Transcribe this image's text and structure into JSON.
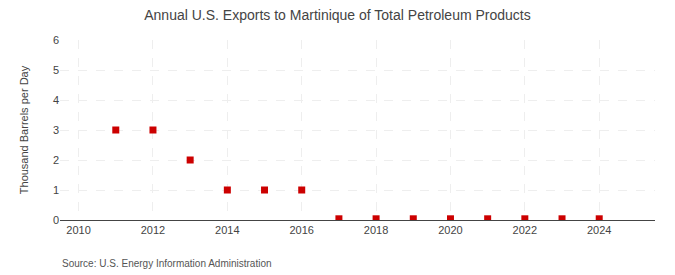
{
  "chart_data": {
    "type": "scatter",
    "title": "Annual U.S. Exports to Martinique of Total Petroleum Products",
    "y_label": "Thousand Barrels per Day",
    "annotations": [
      "Source: U.S. Energy Information Administration"
    ],
    "x": [
      2011,
      2012,
      2013,
      2014,
      2015,
      2016,
      2017,
      2018,
      2019,
      2020,
      2021,
      2022,
      2023,
      2024
    ],
    "values": [
      3,
      3,
      2,
      1,
      1,
      1,
      0.04,
      0.04,
      0.04,
      0.04,
      0.04,
      0.04,
      0.04,
      0.04
    ],
    "color": "#cc0000",
    "marker": "square",
    "xlim": [
      2009.5,
      2025.5
    ],
    "xticks": [
      2010,
      2012,
      2014,
      2016,
      2018,
      2020,
      2022,
      2024
    ],
    "ylim": [
      0,
      6
    ],
    "yticks": [
      0,
      1,
      2,
      3,
      4,
      5,
      6
    ],
    "grid": true
  }
}
